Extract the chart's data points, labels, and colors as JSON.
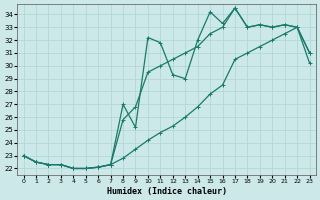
{
  "xlabel": "Humidex (Indice chaleur)",
  "bg_color": "#cce8e8",
  "grid_color": "#b0d8d8",
  "line_color": "#1a7a6a",
  "ylim": [
    21.5,
    34.8
  ],
  "xlim": [
    -0.5,
    23.5
  ],
  "yticks": [
    22,
    23,
    24,
    25,
    26,
    27,
    28,
    29,
    30,
    31,
    32,
    33,
    34
  ],
  "xticks": [
    0,
    1,
    2,
    3,
    4,
    5,
    6,
    7,
    8,
    9,
    10,
    11,
    12,
    13,
    14,
    15,
    16,
    17,
    18,
    19,
    20,
    21,
    22,
    23
  ],
  "line1_x": [
    0,
    1,
    2,
    3,
    4,
    5,
    6,
    7,
    8,
    9,
    10,
    11,
    12,
    13,
    14,
    15,
    16,
    17,
    18,
    19,
    20,
    21,
    22,
    23
  ],
  "line1_y": [
    23.0,
    22.5,
    22.3,
    22.3,
    22.0,
    22.0,
    22.1,
    22.3,
    27.0,
    25.2,
    32.2,
    31.8,
    29.3,
    29.0,
    32.0,
    34.2,
    33.3,
    34.5,
    33.0,
    33.2,
    33.0,
    33.2,
    33.0,
    31.0
  ],
  "line2_x": [
    0,
    1,
    2,
    3,
    4,
    5,
    6,
    7,
    8,
    9,
    10,
    11,
    12,
    13,
    14,
    15,
    16,
    17,
    18,
    19,
    20,
    21,
    22,
    23
  ],
  "line2_y": [
    23.0,
    22.5,
    22.3,
    22.3,
    22.0,
    22.0,
    22.1,
    22.3,
    25.8,
    26.8,
    29.5,
    30.0,
    30.5,
    31.0,
    31.5,
    32.5,
    33.0,
    34.5,
    33.0,
    33.2,
    33.0,
    33.2,
    33.0,
    31.0
  ],
  "line3_x": [
    0,
    1,
    2,
    3,
    4,
    5,
    6,
    7,
    8,
    9,
    10,
    11,
    12,
    13,
    14,
    15,
    16,
    17,
    18,
    19,
    20,
    21,
    22,
    23
  ],
  "line3_y": [
    23.0,
    22.5,
    22.3,
    22.3,
    22.0,
    22.0,
    22.1,
    22.3,
    22.8,
    23.5,
    24.2,
    24.8,
    25.3,
    26.0,
    26.8,
    27.8,
    28.5,
    30.5,
    31.0,
    31.5,
    32.0,
    32.5,
    33.0,
    30.2
  ]
}
